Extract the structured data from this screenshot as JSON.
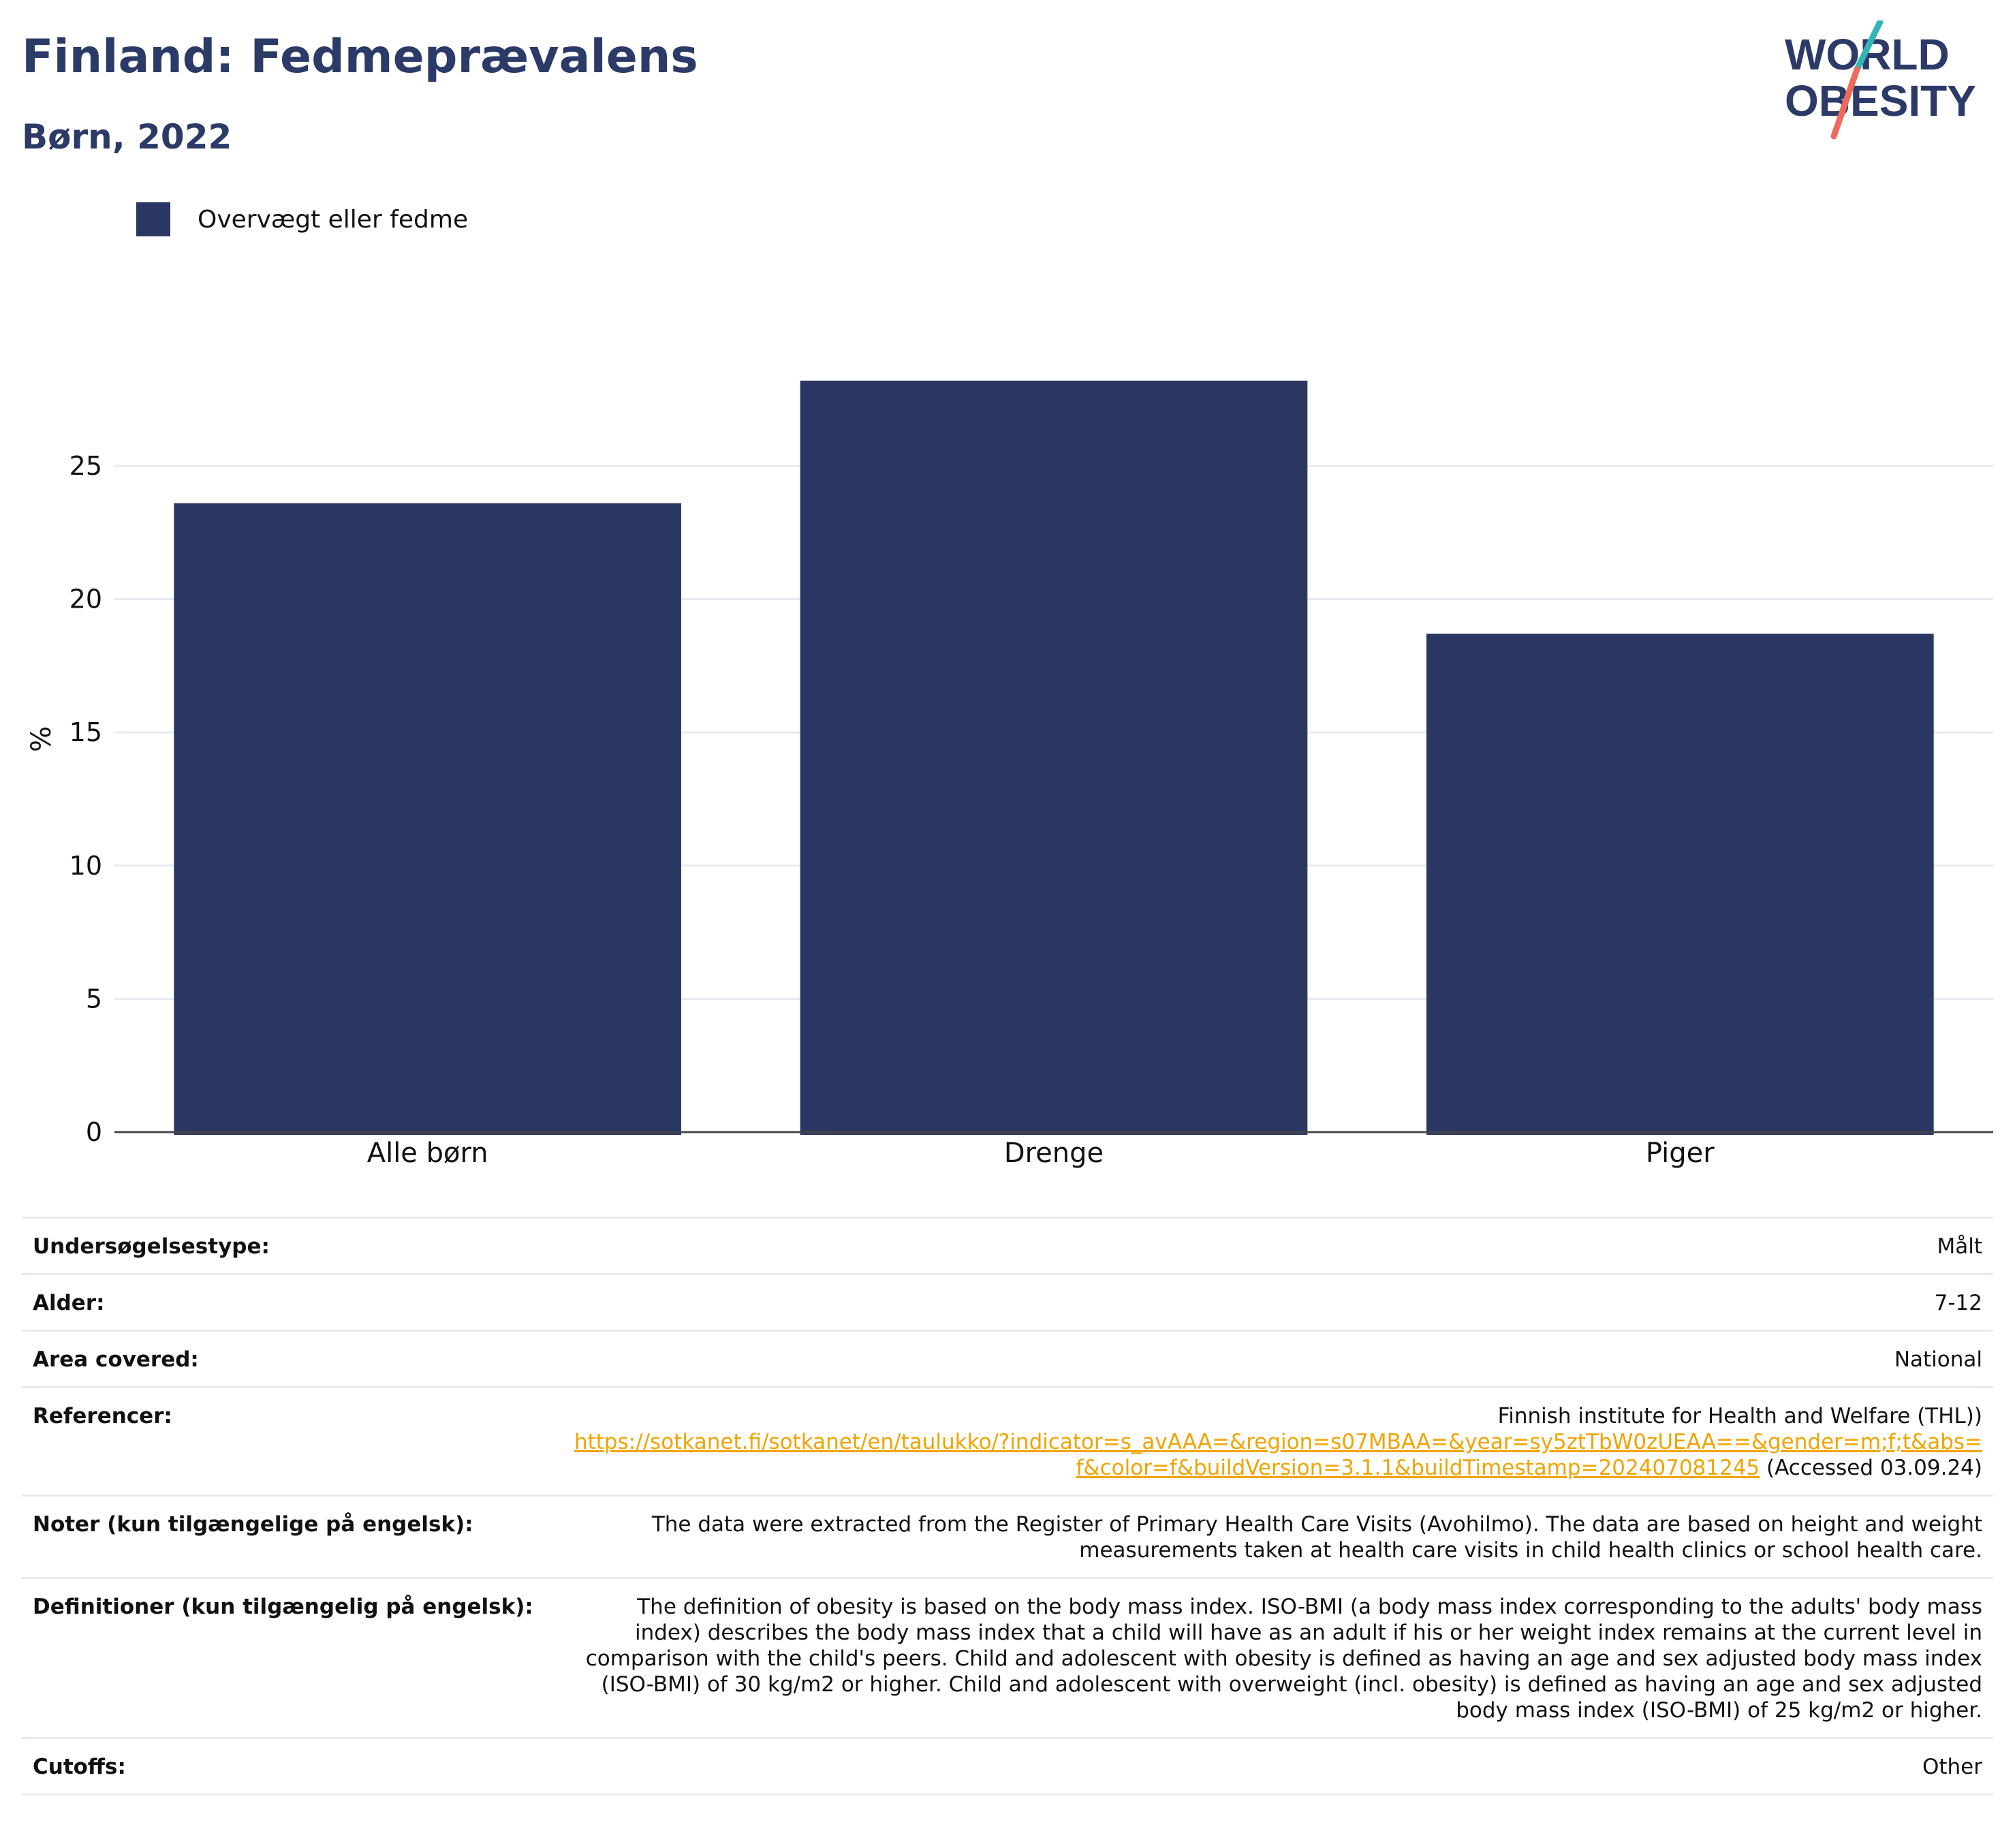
{
  "header": {
    "title": "Finland: Fedmeprævalens",
    "subtitle": "Børn, 2022"
  },
  "logo": {
    "line1": "WORLD",
    "line2": "OBESITY",
    "colors": {
      "navy": "#2c3a67",
      "teal": "#33b5b4",
      "coral": "#ef6a5b"
    }
  },
  "legend": {
    "label": "Overvægt eller fedme",
    "color": "#2b3763"
  },
  "chart_data": {
    "type": "bar",
    "categories": [
      "Alle børn",
      "Drenge",
      "Piger"
    ],
    "series": [
      {
        "name": "Overvægt eller fedme",
        "values": [
          23.6,
          28.2,
          18.7
        ],
        "color": "#2b3763"
      }
    ],
    "ylabel": "%",
    "xlabel": "",
    "ylim": [
      0,
      30
    ],
    "yticks": [
      0,
      5,
      10,
      15,
      20,
      25
    ],
    "grid": true,
    "legend_position": "top-left"
  },
  "info": {
    "rows": [
      {
        "key": "Undersøgelsestype:",
        "value": "Målt"
      },
      {
        "key": "Alder:",
        "value": "7-12"
      },
      {
        "key": "Area covered:",
        "value": "National"
      },
      {
        "key": "Referencer:",
        "value": "Finnish institute for Health and Welfare (THL))",
        "link": "https://sotkanet.fi/sotkanet/en/taulukko/?indicator=s_avAAA=&region=s07MBAA=&year=sy5ztTbW0zUEAA==&gender=m;f;t&abs=f&color=f&buildVersion=3.1.1&buildTimestamp=202407081245",
        "suffix": " (Accessed 03.09.24)"
      },
      {
        "key": "Noter (kun tilgængelige på engelsk):",
        "value": "The data were extracted from the Register of Primary Health Care Visits (Avohilmo). The data are based on height and weight measurements taken at health care visits in child health clinics or school health care."
      },
      {
        "key": "Definitioner (kun tilgængelig på engelsk):",
        "value": "The definition of obesity is based on the body mass index. ISO-BMI (a body mass index corresponding to the adults' body mass index) describes the body mass index that a child will have as an adult if his or her weight index remains at the current level in comparison with the child's peers. Child and adolescent with obesity is defined as having an age and sex adjusted body mass index (ISO-BMI) of 30 kg/m2 or higher. Child and adolescent with overweight (incl. obesity) is defined as having an age and sex adjusted body mass index (ISO-BMI) of 25 kg/m2 or higher."
      },
      {
        "key": "Cutoffs:",
        "value": "Other"
      }
    ]
  }
}
